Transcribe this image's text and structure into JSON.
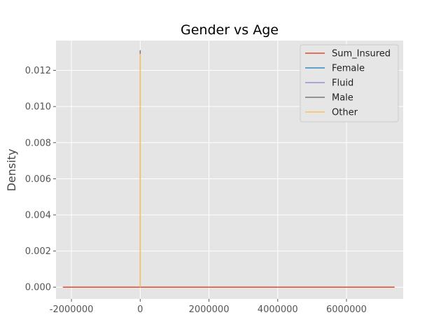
{
  "chart_data": {
    "type": "line",
    "title": "Gender vs Age",
    "xlabel": "",
    "ylabel": "Density",
    "xlim": [
      -2450000,
      7650000
    ],
    "ylim": [
      -0.00065,
      0.01365
    ],
    "xticks": [
      -2000000,
      0,
      2000000,
      4000000,
      6000000
    ],
    "xtick_labels": [
      "-2000000",
      "0",
      "2000000",
      "4000000",
      "6000000"
    ],
    "yticks": [
      0.0,
      0.002,
      0.004,
      0.006,
      0.008,
      0.01,
      0.012
    ],
    "ytick_labels": [
      "0.000",
      "0.002",
      "0.004",
      "0.006",
      "0.008",
      "0.010",
      "0.012"
    ],
    "grid": true,
    "legend_position": "top-right",
    "series": [
      {
        "name": "Sum_Insured",
        "color": "#E24A33",
        "x": [
          -2250000,
          0,
          2500000,
          5000000,
          7400000
        ],
        "y": [
          0.0,
          0.0,
          0.0,
          0.0,
          0.0
        ]
      },
      {
        "name": "Female",
        "color": "#348ABD",
        "x": [
          -20,
          0,
          20,
          40,
          60,
          80,
          100,
          120
        ],
        "y": [
          0.0,
          0.0,
          0.0,
          0.0,
          0.0,
          0.0,
          0.0,
          0.0
        ]
      },
      {
        "name": "Fluid",
        "color": "#988ED5",
        "x": [
          -20,
          0,
          20,
          40,
          60,
          80,
          100,
          120
        ],
        "y": [
          0.0,
          0.0,
          0.0,
          0.0,
          0.0,
          0.0,
          0.0,
          0.0
        ]
      },
      {
        "name": "Male",
        "color": "#777777",
        "x": [
          -20,
          10,
          20,
          30,
          40,
          50,
          60,
          120
        ],
        "y": [
          0.0,
          0.004,
          0.009,
          0.0131,
          0.012,
          0.007,
          0.003,
          0.0
        ]
      },
      {
        "name": "Other",
        "color": "#FBC15E",
        "x": [
          -20,
          10,
          20,
          30,
          40,
          50,
          60,
          120
        ],
        "y": [
          0.0,
          0.004,
          0.009,
          0.0129,
          0.0118,
          0.007,
          0.003,
          0.0
        ]
      }
    ]
  }
}
